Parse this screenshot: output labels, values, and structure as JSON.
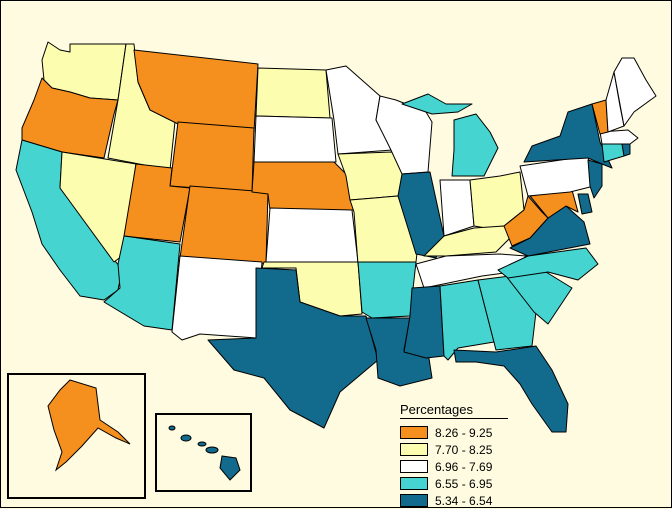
{
  "legend": {
    "title": "Percentages",
    "classes": [
      {
        "label": "8.26 - 9.25",
        "color": "#f5901e"
      },
      {
        "label": "7.70 - 8.25",
        "color": "#fdfdaf"
      },
      {
        "label": "6.96 - 7.69",
        "color": "#ffffff"
      },
      {
        "label": "6.55 - 6.95",
        "color": "#45d4d0"
      },
      {
        "label": "5.34 - 6.54",
        "color": "#126a8c"
      }
    ]
  },
  "states": {
    "WA": 1,
    "OR": 0,
    "CA": 3,
    "NV": 1,
    "ID": 1,
    "MT": 0,
    "WY": 0,
    "UT": 0,
    "CO": 0,
    "AZ": 3,
    "NM": 2,
    "ND": 1,
    "SD": 2,
    "NE": 0,
    "KS": 2,
    "OK": 1,
    "TX": 4,
    "MN": 2,
    "IA": 1,
    "MO": 1,
    "AR": 3,
    "LA": 4,
    "WI": 2,
    "IL": 4,
    "MI": 3,
    "IN": 2,
    "OH": 1,
    "KY": 1,
    "TN": 2,
    "MS": 4,
    "AL": 3,
    "GA": 3,
    "FL": 4,
    "SC": 3,
    "NC": 3,
    "VA": 4,
    "WV": 0,
    "MD": 0,
    "DE": 4,
    "NJ": 4,
    "PA": 2,
    "NY": 4,
    "CT": 3,
    "RI": 4,
    "MA": 2,
    "VT": 0,
    "NH": 2,
    "ME": 2,
    "AK": 0,
    "HI": 4
  }
}
